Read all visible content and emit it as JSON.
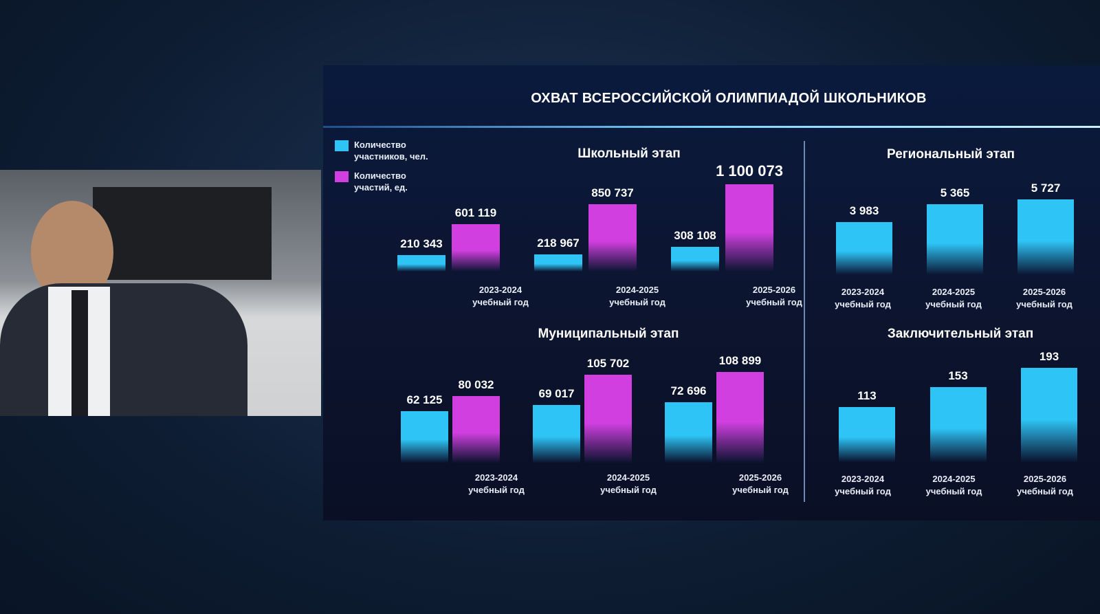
{
  "slide_title": "ОХВАТ ВСЕРОССИЙСКОЙ ОЛИМПИАДОЙ ШКОЛЬНИКОВ",
  "chart_data": [
    {
      "type": "bar",
      "title": "Школьный этап",
      "categories": [
        "2023-2024 учебный год",
        "2024-2025 учебный год",
        "2025-2026 учебный год"
      ],
      "series": [
        {
          "name": "Количество участников, чел.",
          "color": "#2ec4f5",
          "values": [
            210343,
            218967,
            308108
          ],
          "value_labels": [
            "210 343",
            "218 967",
            "308 108"
          ]
        },
        {
          "name": "Количество участий, ед.",
          "color": "#d13fe0",
          "values": [
            601119,
            850737,
            1100073
          ],
          "value_labels": [
            "601 119",
            "850 737",
            "1 100 073"
          ]
        }
      ]
    },
    {
      "type": "bar",
      "title": "Муниципальный этап",
      "categories": [
        "2023-2024 учебный год",
        "2024-2025 учебный год",
        "2025-2026 учебный год"
      ],
      "series": [
        {
          "color": "#2ec4f5",
          "values": [
            62125,
            69017,
            72696
          ],
          "value_labels": [
            "62 125",
            "69 017",
            "72 696"
          ]
        },
        {
          "color": "#d13fe0",
          "values": [
            80032,
            105702,
            108899
          ],
          "value_labels": [
            "80 032",
            "105 702",
            "108 899"
          ]
        }
      ]
    },
    {
      "type": "bar",
      "title": "Региональный этап",
      "categories": [
        "2023-2024 учебный год",
        "2024-2025 учебный год",
        "2025-2026 учебный год"
      ],
      "series": [
        {
          "color": "#2ec4f5",
          "values": [
            3983,
            5365,
            5727
          ],
          "value_labels": [
            "3 983",
            "5 365",
            "5 727"
          ]
        }
      ]
    },
    {
      "type": "bar",
      "title": "Заключительный этап",
      "categories": [
        "2023-2024 учебный год",
        "2024-2025 учебный год",
        "2025-2026 учебный год"
      ],
      "series": [
        {
          "color": "#2ec4f5",
          "values": [
            113,
            153,
            193
          ]
        }
      ]
    }
  ]
}
